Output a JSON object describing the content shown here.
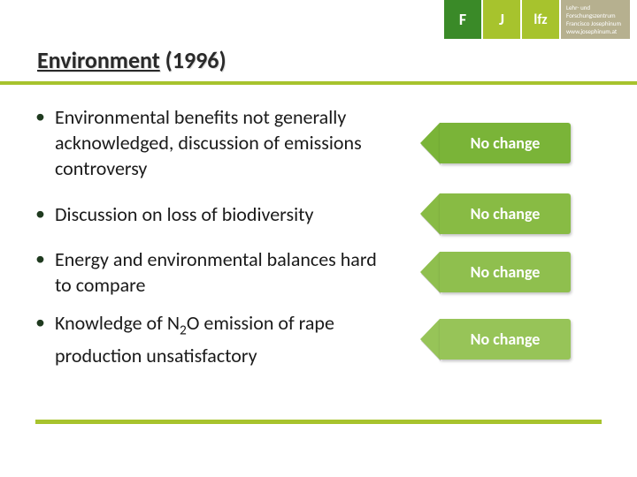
{
  "logo": {
    "box_a": "F",
    "box_b": "J",
    "box_c": "lfz",
    "sidebar_line1": "Lehr- und Forschungszentrum",
    "sidebar_line2": "Francisco Josephinum",
    "sidebar_url": "www.josephinum.at",
    "color_a": "#3a8a28",
    "color_b": "#a7c32d",
    "color_sidebar": "#b6b08f"
  },
  "title": {
    "word1": "Environment",
    "year": "(1996)",
    "text_color": "#2a2a2a",
    "fontsize": 26
  },
  "rule_color": "#a7c32d",
  "bullets": [
    {
      "text": "Environmental benefits not generally acknowledged, discussion of emissions controversy"
    },
    {
      "text": "Discussion on loss of biodiversity"
    },
    {
      "text": "Energy and environmental balances hard to compare"
    },
    {
      "text_html": "Knowledge of N<sub>2</sub>O emission of rape production unsatisfactory"
    }
  ],
  "tags": [
    {
      "label": "No change",
      "fill": "#7ab438"
    },
    {
      "label": "No change",
      "fill": "#88bb44"
    },
    {
      "label": "No change",
      "fill": "#8fbf4e"
    },
    {
      "label": "No change",
      "fill": "#97c458"
    }
  ],
  "bullet_marker_color": "#1f3a1f",
  "body_fontsize": 22
}
